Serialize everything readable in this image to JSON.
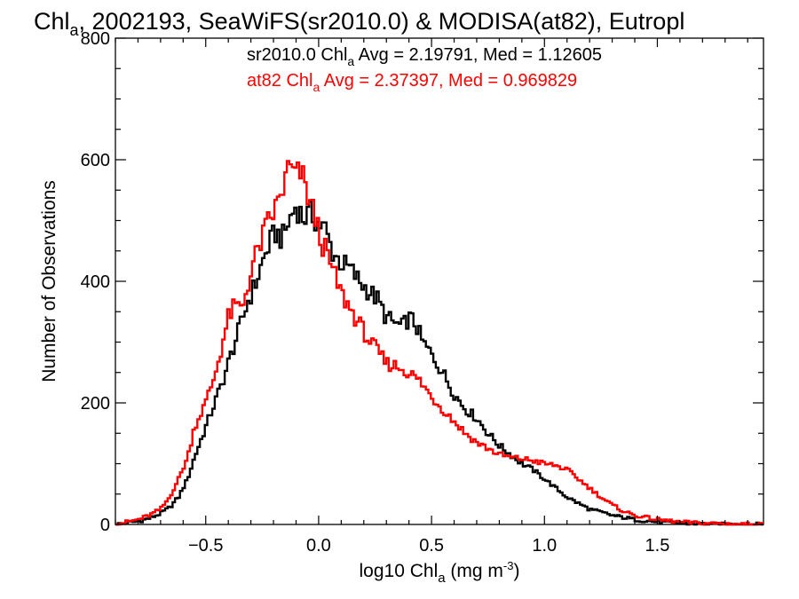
{
  "chart_data": {
    "type": "line",
    "title": {
      "prefix": "Chl",
      "sub": "a",
      "rest": ", 2002193, SeaWiFS(sr2010.0) & MODISA(at82), Eutropl"
    },
    "xlabel": {
      "prefix": "log10 Chl",
      "sub": "a",
      "mid": " (mg m",
      "sup": "-3",
      "end": ")"
    },
    "ylabel": "Number of Observations",
    "xlim": [
      -0.9,
      1.97
    ],
    "ylim": [
      0,
      800
    ],
    "x_ticks": [
      -0.5,
      0.0,
      0.5,
      1.0,
      1.5
    ],
    "x_tick_labels": [
      "−0.5",
      "0.0",
      "0.5",
      "1.0",
      "1.5"
    ],
    "y_ticks": [
      0,
      200,
      400,
      600,
      800
    ],
    "y_tick_labels": [
      "0",
      "200",
      "400",
      "600",
      "800"
    ],
    "step_mode": "histogram",
    "series": [
      {
        "name": "sr2010.0",
        "color": "#000000",
        "legend": {
          "prefix": "sr2010.0 Chl",
          "sub": "a",
          "rest": " Avg = 2.19791, Med = 1.12605"
        },
        "points": [
          [
            -0.9,
            0
          ],
          [
            -0.8,
            5
          ],
          [
            -0.75,
            10
          ],
          [
            -0.7,
            18
          ],
          [
            -0.66,
            28
          ],
          [
            -0.62,
            45
          ],
          [
            -0.58,
            75
          ],
          [
            -0.55,
            110
          ],
          [
            -0.5,
            160
          ],
          [
            -0.46,
            200
          ],
          [
            -0.43,
            230
          ],
          [
            -0.4,
            265
          ],
          [
            -0.37,
            300
          ],
          [
            -0.34,
            335
          ],
          [
            -0.31,
            370
          ],
          [
            -0.28,
            395
          ],
          [
            -0.25,
            430
          ],
          [
            -0.22,
            460
          ],
          [
            -0.19,
            480
          ],
          [
            -0.16,
            470
          ],
          [
            -0.13,
            500
          ],
          [
            -0.1,
            525
          ],
          [
            -0.07,
            505
          ],
          [
            -0.03,
            510
          ],
          [
            0.0,
            495
          ],
          [
            0.03,
            485
          ],
          [
            0.06,
            450
          ],
          [
            0.1,
            430
          ],
          [
            0.14,
            420
          ],
          [
            0.18,
            400
          ],
          [
            0.22,
            385
          ],
          [
            0.26,
            370
          ],
          [
            0.3,
            340
          ],
          [
            0.34,
            330
          ],
          [
            0.37,
            325
          ],
          [
            0.4,
            340
          ],
          [
            0.43,
            330
          ],
          [
            0.46,
            300
          ],
          [
            0.5,
            280
          ],
          [
            0.55,
            250
          ],
          [
            0.6,
            215
          ],
          [
            0.65,
            190
          ],
          [
            0.7,
            175
          ],
          [
            0.75,
            150
          ],
          [
            0.8,
            130
          ],
          [
            0.85,
            115
          ],
          [
            0.9,
            100
          ],
          [
            0.95,
            90
          ],
          [
            1.0,
            75
          ],
          [
            1.05,
            60
          ],
          [
            1.1,
            45
          ],
          [
            1.15,
            35
          ],
          [
            1.2,
            25
          ],
          [
            1.3,
            15
          ],
          [
            1.4,
            8
          ],
          [
            1.5,
            4
          ],
          [
            1.6,
            2
          ],
          [
            1.8,
            0
          ],
          [
            1.97,
            0
          ]
        ]
      },
      {
        "name": "at82",
        "color": "#ff0000",
        "legend": {
          "prefix": "at82 Chl",
          "sub": "a",
          "rest": " Avg = 2.37397, Med = 0.969829"
        },
        "points": [
          [
            -0.9,
            0
          ],
          [
            -0.8,
            8
          ],
          [
            -0.75,
            15
          ],
          [
            -0.7,
            25
          ],
          [
            -0.66,
            45
          ],
          [
            -0.62,
            75
          ],
          [
            -0.58,
            110
          ],
          [
            -0.55,
            160
          ],
          [
            -0.5,
            200
          ],
          [
            -0.46,
            245
          ],
          [
            -0.43,
            290
          ],
          [
            -0.4,
            340
          ],
          [
            -0.37,
            360
          ],
          [
            -0.34,
            355
          ],
          [
            -0.31,
            400
          ],
          [
            -0.28,
            440
          ],
          [
            -0.25,
            470
          ],
          [
            -0.22,
            500
          ],
          [
            -0.19,
            520
          ],
          [
            -0.16,
            550
          ],
          [
            -0.13,
            590
          ],
          [
            -0.1,
            570
          ],
          [
            -0.08,
            580
          ],
          [
            -0.05,
            545
          ],
          [
            -0.02,
            510
          ],
          [
            0.01,
            470
          ],
          [
            0.04,
            440
          ],
          [
            0.07,
            410
          ],
          [
            0.1,
            380
          ],
          [
            0.14,
            355
          ],
          [
            0.18,
            330
          ],
          [
            0.22,
            305
          ],
          [
            0.26,
            285
          ],
          [
            0.3,
            265
          ],
          [
            0.35,
            260
          ],
          [
            0.4,
            250
          ],
          [
            0.45,
            235
          ],
          [
            0.5,
            210
          ],
          [
            0.55,
            190
          ],
          [
            0.6,
            170
          ],
          [
            0.65,
            150
          ],
          [
            0.7,
            135
          ],
          [
            0.75,
            125
          ],
          [
            0.8,
            115
          ],
          [
            0.85,
            110
          ],
          [
            0.9,
            108
          ],
          [
            0.95,
            105
          ],
          [
            1.0,
            100
          ],
          [
            1.05,
            97
          ],
          [
            1.1,
            90
          ],
          [
            1.15,
            75
          ],
          [
            1.2,
            60
          ],
          [
            1.25,
            45
          ],
          [
            1.3,
            32
          ],
          [
            1.35,
            22
          ],
          [
            1.4,
            15
          ],
          [
            1.5,
            8
          ],
          [
            1.6,
            4
          ],
          [
            1.7,
            2
          ],
          [
            1.85,
            1
          ],
          [
            1.97,
            0
          ]
        ]
      }
    ],
    "grid": false,
    "legend_position": "top-center"
  }
}
